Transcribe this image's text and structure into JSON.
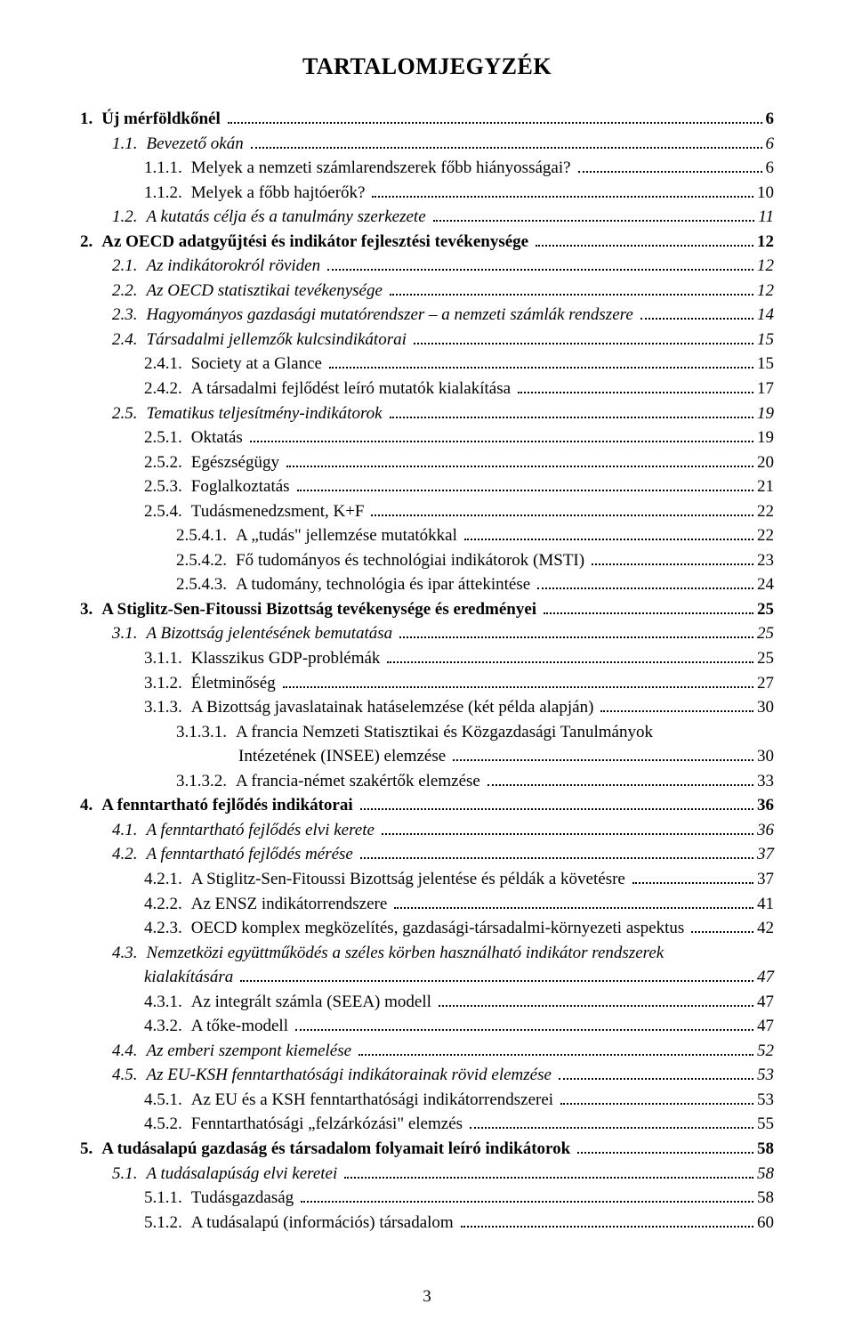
{
  "title": "TARTALOMJEGYZÉK",
  "page_number": "3",
  "entries": [
    {
      "num": "1.",
      "text": "Új mérföldkőnél",
      "page": "6",
      "level": 0,
      "bold": true,
      "italic": false
    },
    {
      "num": "1.1.",
      "text": "Bevezető okán",
      "page": "6",
      "level": 1,
      "bold": false,
      "italic": true
    },
    {
      "num": "1.1.1.",
      "text": "Melyek a nemzeti számlarendszerek főbb hiányosságai?",
      "page": "6",
      "level": 2,
      "bold": false,
      "italic": false
    },
    {
      "num": "1.1.2.",
      "text": "Melyek a főbb hajtóerők?",
      "page": "10",
      "level": 2,
      "bold": false,
      "italic": false
    },
    {
      "num": "1.2.",
      "text": "A kutatás célja és a tanulmány szerkezete",
      "page": "11",
      "level": 1,
      "bold": false,
      "italic": true
    },
    {
      "num": "2.",
      "text": "Az OECD adatgyűjtési és indikátor fejlesztési tevékenysége",
      "page": "12",
      "level": 0,
      "bold": true,
      "italic": false
    },
    {
      "num": "2.1.",
      "text": "Az indikátorokról röviden",
      "page": "12",
      "level": 1,
      "bold": false,
      "italic": true
    },
    {
      "num": "2.2.",
      "text": "Az OECD statisztikai tevékenysége",
      "page": "12",
      "level": 1,
      "bold": false,
      "italic": true
    },
    {
      "num": "2.3.",
      "text": "Hagyományos gazdasági mutatórendszer – a nemzeti számlák rendszere",
      "page": "14",
      "level": 1,
      "bold": false,
      "italic": true
    },
    {
      "num": "2.4.",
      "text": "Társadalmi jellemzők kulcsindikátorai",
      "page": "15",
      "level": 1,
      "bold": false,
      "italic": true
    },
    {
      "num": "2.4.1.",
      "text": "Society at a Glance",
      "page": "15",
      "level": 2,
      "bold": false,
      "italic": false
    },
    {
      "num": "2.4.2.",
      "text": "A társadalmi fejlődést leíró mutatók kialakítása",
      "page": "17",
      "level": 2,
      "bold": false,
      "italic": false
    },
    {
      "num": "2.5.",
      "text": "Tematikus teljesítmény-indikátorok",
      "page": "19",
      "level": 1,
      "bold": false,
      "italic": true
    },
    {
      "num": "2.5.1.",
      "text": "Oktatás",
      "page": "19",
      "level": 2,
      "bold": false,
      "italic": false
    },
    {
      "num": "2.5.2.",
      "text": "Egészségügy",
      "page": "20",
      "level": 2,
      "bold": false,
      "italic": false
    },
    {
      "num": "2.5.3.",
      "text": "Foglalkoztatás",
      "page": "21",
      "level": 2,
      "bold": false,
      "italic": false
    },
    {
      "num": "2.5.4.",
      "text": "Tudásmenedzsment, K+F",
      "page": "22",
      "level": 2,
      "bold": false,
      "italic": false
    },
    {
      "num": "2.5.4.1.",
      "text": "A „tudás\" jellemzése mutatókkal",
      "page": "22",
      "level": 3,
      "bold": false,
      "italic": false
    },
    {
      "num": "2.5.4.2.",
      "text": "Fő tudományos és technológiai indikátorok (MSTI)",
      "page": "23",
      "level": 3,
      "bold": false,
      "italic": false
    },
    {
      "num": "2.5.4.3.",
      "text": "A tudomány, technológia és ipar áttekintése",
      "page": "24",
      "level": 3,
      "bold": false,
      "italic": false
    },
    {
      "num": "3.",
      "text": "A Stiglitz-Sen-Fitoussi Bizottság tevékenysége és eredményei",
      "page": "25",
      "level": 0,
      "bold": true,
      "italic": false
    },
    {
      "num": "3.1.",
      "text": "A Bizottság jelentésének bemutatása",
      "page": "25",
      "level": 1,
      "bold": false,
      "italic": true
    },
    {
      "num": "3.1.1.",
      "text": "Klasszikus GDP-problémák",
      "page": "25",
      "level": 2,
      "bold": false,
      "italic": false
    },
    {
      "num": "3.1.2.",
      "text": "Életminőség",
      "page": "27",
      "level": 2,
      "bold": false,
      "italic": false
    },
    {
      "num": "3.1.3.",
      "text": "A Bizottság javaslatainak hatáselemzése (két példa alapján)",
      "page": "30",
      "level": 2,
      "bold": false,
      "italic": false
    },
    {
      "num": "3.1.3.1.",
      "text": "A francia Nemzeti Statisztikai és Közgazdasági Tanulmányok",
      "page": "",
      "level": 3,
      "bold": false,
      "italic": false,
      "nodots": true
    },
    {
      "num": "",
      "text": "Intézetének (INSEE) elemzése",
      "page": "30",
      "level": "3b",
      "bold": false,
      "italic": false
    },
    {
      "num": "3.1.3.2.",
      "text": "A francia-német szakértők elemzése",
      "page": "33",
      "level": 3,
      "bold": false,
      "italic": false
    },
    {
      "num": "4.",
      "text": "A fenntartható fejlődés indikátorai",
      "page": "36",
      "level": 0,
      "bold": true,
      "italic": false
    },
    {
      "num": "4.1.",
      "text": "A fenntartható fejlődés elvi kerete",
      "page": "36",
      "level": 1,
      "bold": false,
      "italic": true
    },
    {
      "num": "4.2.",
      "text": "A fenntartható fejlődés mérése",
      "page": "37",
      "level": 1,
      "bold": false,
      "italic": true
    },
    {
      "num": "4.2.1.",
      "text": "A Stiglitz-Sen-Fitoussi Bizottság jelentése és példák a követésre",
      "page": "37",
      "level": 2,
      "bold": false,
      "italic": false
    },
    {
      "num": "4.2.2.",
      "text": "Az ENSZ indikátorrendszere",
      "page": "41",
      "level": 2,
      "bold": false,
      "italic": false
    },
    {
      "num": "4.2.3.",
      "text": "OECD komplex megközelítés, gazdasági-társadalmi-környezeti aspektus",
      "page": "42",
      "level": 2,
      "bold": false,
      "italic": false
    },
    {
      "num": "4.3.",
      "text": "Nemzetközi együttműködés a széles körben használható indikátor rendszerek",
      "page": "",
      "level": 1,
      "bold": false,
      "italic": true,
      "nodots": true
    },
    {
      "num": "",
      "text": "kialakítására",
      "page": "47",
      "level": 2,
      "bold": false,
      "italic": true
    },
    {
      "num": "4.3.1.",
      "text": "Az integrált számla (SEEA) modell",
      "page": "47",
      "level": 2,
      "bold": false,
      "italic": false
    },
    {
      "num": "4.3.2.",
      "text": "A tőke-modell",
      "page": "47",
      "level": 2,
      "bold": false,
      "italic": false
    },
    {
      "num": "4.4.",
      "text": "Az emberi szempont kiemelése",
      "page": "52",
      "level": 1,
      "bold": false,
      "italic": true
    },
    {
      "num": "4.5.",
      "text": "Az EU-KSH fenntarthatósági indikátorainak rövid elemzése",
      "page": "53",
      "level": 1,
      "bold": false,
      "italic": true
    },
    {
      "num": "4.5.1.",
      "text": "Az EU és a KSH fenntarthatósági indikátorrendszerei",
      "page": "53",
      "level": 2,
      "bold": false,
      "italic": false
    },
    {
      "num": "4.5.2.",
      "text": "Fenntarthatósági „felzárkózási\" elemzés",
      "page": "55",
      "level": 2,
      "bold": false,
      "italic": false
    },
    {
      "num": "5.",
      "text": "A tudásalapú gazdaság és társadalom folyamait leíró indikátorok",
      "page": "58",
      "level": 0,
      "bold": true,
      "italic": false
    },
    {
      "num": "5.1.",
      "text": "A tudásalapúság elvi keretei",
      "page": "58",
      "level": 1,
      "bold": false,
      "italic": true
    },
    {
      "num": "5.1.1.",
      "text": "Tudásgazdaság",
      "page": "58",
      "level": 2,
      "bold": false,
      "italic": false
    },
    {
      "num": "5.1.2.",
      "text": "A tudásalapú (információs) társadalom",
      "page": "60",
      "level": 2,
      "bold": false,
      "italic": false
    }
  ]
}
